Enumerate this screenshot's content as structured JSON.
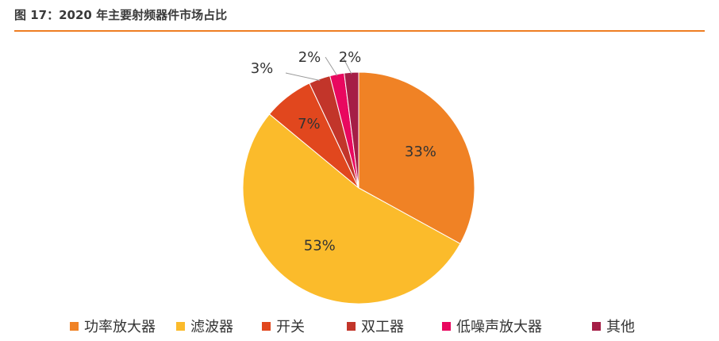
{
  "figure": {
    "title": "图 17：2020 年主要射频器件市场占比"
  },
  "chart_data": {
    "type": "pie",
    "categories": [
      "功率放大器",
      "滤波器",
      "开关",
      "双工器",
      "低噪声放大器",
      "其他"
    ],
    "values": [
      33,
      53,
      7,
      3,
      2,
      2
    ],
    "labels": [
      "33%",
      "53%",
      "7%",
      "3%",
      "2%",
      "2%"
    ],
    "colors": [
      "#f08225",
      "#fbbb2b",
      "#e1471e",
      "#c2352a",
      "#e9085f",
      "#a51e46"
    ],
    "legend_position": "bottom",
    "start_angle_deg": 0,
    "direction": "clockwise"
  }
}
